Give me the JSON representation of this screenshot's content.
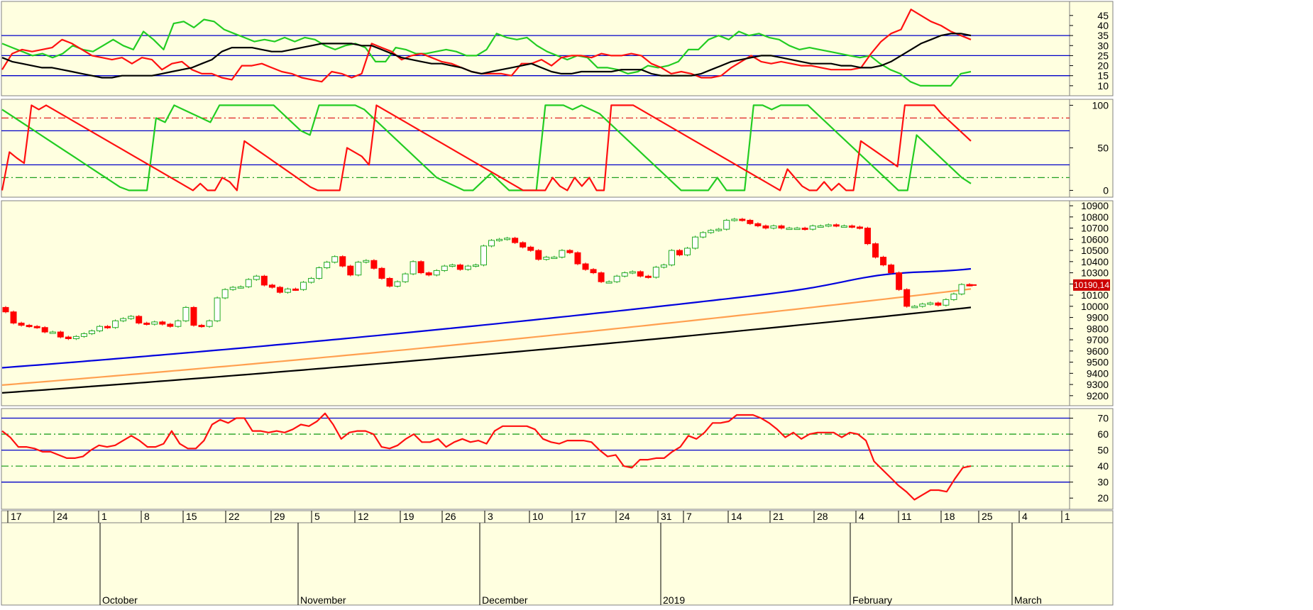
{
  "colors": {
    "panel_bg": "#ffffe0",
    "panel_border": "#808080",
    "guide_solid": "#0000c8",
    "guide_red_dash": "#e02020",
    "guide_green_dash": "#20a020",
    "red": "#ff1010",
    "green": "#22cc22",
    "black": "#000000",
    "blue": "#0000dd",
    "orange": "#ffa050",
    "candle_up_border": "#22aa22",
    "candle_down": "#ff0000",
    "last_price_bg": "#cc0000"
  },
  "x_axis": {
    "day_labels": [
      "17",
      "24",
      "1",
      "8",
      "15",
      "22",
      "29",
      "5",
      "12",
      "19",
      "26",
      "3",
      "10",
      "17",
      "24",
      "31",
      "7",
      "14",
      "21",
      "28",
      "4",
      "11",
      "18",
      "25",
      "4",
      "1"
    ],
    "month_labels": [
      "October",
      "November",
      "December",
      "2019",
      "February",
      "March"
    ]
  },
  "last_price": {
    "label": "10190,14",
    "value": 10190.14
  },
  "chart_data": [
    {
      "type": "line",
      "panel": "dmi",
      "ylim": [
        5,
        52
      ],
      "y_ticks": [
        "10",
        "15",
        "20",
        "25",
        "30",
        "35",
        "40",
        "45"
      ],
      "y_tick_values": [
        10,
        15,
        20,
        25,
        30,
        35,
        40,
        45
      ],
      "guides": [
        {
          "value": 15,
          "style": "solid"
        },
        {
          "value": 25,
          "style": "solid"
        },
        {
          "value": 35,
          "style": "solid"
        }
      ],
      "series": [
        {
          "color": "green",
          "values": [
            31,
            29,
            27,
            25,
            26,
            24,
            26,
            30,
            28,
            27,
            30,
            33,
            30,
            28,
            37,
            33,
            28,
            41,
            42,
            39,
            43,
            42,
            38,
            36,
            34,
            32,
            33,
            32,
            34,
            32,
            34,
            33,
            30,
            28,
            30,
            31,
            29,
            22,
            22,
            29,
            28,
            26,
            26,
            27,
            28,
            27,
            25,
            25,
            28,
            36,
            34,
            33,
            34,
            30,
            27,
            25,
            23,
            25,
            24,
            19,
            19,
            18,
            16,
            17,
            20,
            19,
            20,
            22,
            28,
            28,
            33,
            35,
            33,
            37,
            35,
            36,
            34,
            33,
            30,
            28,
            29,
            28,
            27,
            26,
            25,
            24,
            25,
            21,
            18,
            16,
            12,
            10,
            10,
            10,
            10,
            16,
            17
          ]
        },
        {
          "color": "red",
          "values": [
            18,
            26,
            28,
            27,
            28,
            29,
            33,
            31,
            28,
            25,
            24,
            23,
            24,
            21,
            24,
            23,
            18,
            21,
            22,
            18,
            16,
            16,
            14,
            13,
            20,
            20,
            21,
            19,
            17,
            16,
            14,
            13,
            12,
            17,
            16,
            14,
            16,
            31,
            29,
            27,
            23,
            25,
            26,
            24,
            22,
            21,
            19,
            17,
            16,
            16,
            16,
            15,
            21,
            21,
            23,
            20,
            24,
            25,
            25,
            24,
            26,
            25,
            25,
            26,
            25,
            21,
            19,
            16,
            17,
            16,
            14,
            14,
            15,
            19,
            22,
            25,
            22,
            21,
            22,
            21,
            20,
            20,
            19,
            18,
            18,
            18,
            19,
            26,
            32,
            36,
            38,
            48,
            45,
            42,
            40,
            37,
            35,
            33
          ]
        },
        {
          "color": "black",
          "values": [
            24,
            22,
            21,
            20,
            19,
            19,
            18,
            17,
            16,
            15,
            14,
            14,
            15,
            15,
            15,
            15,
            16,
            17,
            18,
            19,
            21,
            23,
            27,
            29,
            29,
            29,
            28,
            27,
            27,
            28,
            29,
            30,
            31,
            31,
            31,
            31,
            30,
            30,
            28,
            26,
            24,
            23,
            22,
            21,
            21,
            20,
            19,
            17,
            16,
            17,
            18,
            19,
            20,
            21,
            19,
            17,
            16,
            16,
            17,
            17,
            17,
            17,
            18,
            18,
            18,
            16,
            15,
            15,
            15,
            15,
            16,
            18,
            20,
            22,
            23,
            24,
            25,
            25,
            24,
            23,
            22,
            21,
            21,
            21,
            20,
            20,
            19,
            19,
            20,
            22,
            25,
            28,
            31,
            33,
            35,
            36,
            36,
            35
          ]
        }
      ]
    },
    {
      "type": "line",
      "panel": "aroon",
      "ylim": [
        -8,
        107
      ],
      "y_ticks": [
        "0",
        "50",
        "100"
      ],
      "y_tick_values": [
        0,
        50,
        100
      ],
      "guides": [
        {
          "value": 85,
          "style": "dash-red"
        },
        {
          "value": 70,
          "style": "solid"
        },
        {
          "value": 30,
          "style": "solid"
        },
        {
          "value": 15,
          "style": "dash-green"
        }
      ],
      "series": [
        {
          "color": "green",
          "values": [
            95,
            88,
            81,
            74,
            67,
            60,
            53,
            46,
            39,
            32,
            25,
            18,
            11,
            4,
            0,
            0,
            0,
            85,
            80,
            100,
            95,
            90,
            85,
            80,
            100,
            100,
            100,
            100,
            100,
            100,
            100,
            90,
            80,
            70,
            65,
            100,
            100,
            100,
            100,
            100,
            95,
            85,
            75,
            65,
            55,
            45,
            35,
            25,
            15,
            10,
            5,
            0,
            0,
            10,
            20,
            10,
            0,
            0,
            0,
            0,
            100,
            100,
            100,
            95,
            100,
            95,
            90,
            80,
            70,
            60,
            50,
            40,
            30,
            20,
            10,
            0,
            0,
            0,
            0,
            15,
            0,
            0,
            0,
            100,
            100,
            95,
            100,
            100,
            100,
            100,
            90,
            80,
            70,
            60,
            50,
            40,
            30,
            20,
            10,
            0,
            0,
            65,
            55,
            45,
            35,
            25,
            15,
            8
          ]
        },
        {
          "color": "red",
          "values": [
            0,
            45,
            38,
            32,
            100,
            95,
            100,
            95,
            90,
            85,
            80,
            75,
            70,
            65,
            60,
            55,
            50,
            45,
            40,
            35,
            30,
            25,
            20,
            15,
            10,
            5,
            0,
            8,
            0,
            0,
            15,
            10,
            0,
            58,
            52,
            46,
            40,
            34,
            28,
            22,
            16,
            10,
            4,
            0,
            0,
            0,
            0,
            50,
            45,
            40,
            30,
            100,
            95,
            90,
            85,
            80,
            75,
            70,
            65,
            60,
            55,
            50,
            45,
            40,
            35,
            30,
            25,
            20,
            15,
            10,
            5,
            0,
            0,
            0,
            0,
            15,
            5,
            0,
            15,
            5,
            15,
            0,
            0,
            100,
            100,
            100,
            100,
            95,
            90,
            85,
            80,
            75,
            70,
            65,
            60,
            55,
            50,
            45,
            40,
            35,
            30,
            25,
            20,
            15,
            10,
            5,
            0,
            25,
            15,
            5,
            0,
            0,
            10,
            0,
            8,
            0,
            0,
            58,
            52,
            46,
            40,
            34,
            28,
            100,
            100,
            100,
            100,
            100,
            90,
            82,
            74,
            66,
            58
          ]
        }
      ]
    },
    {
      "type": "line",
      "panel": "price",
      "ylim": [
        9110,
        10945
      ],
      "y_ticks": [
        "9200",
        "9300",
        "9400",
        "9500",
        "9600",
        "9700",
        "9800",
        "9900",
        "10000",
        "10100",
        "10200",
        "10300",
        "10400",
        "10500",
        "10600",
        "10700",
        "10800",
        "10900"
      ],
      "y_tick_values": [
        9200,
        9300,
        9400,
        9500,
        9600,
        9700,
        9800,
        9900,
        10000,
        10100,
        10200,
        10300,
        10400,
        10500,
        10600,
        10700,
        10800,
        10900
      ],
      "candles": {
        "open": [
          9990,
          9950,
          9850,
          9830,
          9820,
          9810,
          9770,
          9770,
          9725,
          9710,
          9730,
          9755,
          9780,
          9820,
          9810,
          9870,
          9890,
          9910,
          9850,
          9840,
          9860,
          9840,
          9820,
          9870,
          9990,
          9830,
          9820,
          9870,
          10075,
          10150,
          10170,
          10175,
          10240,
          10270,
          10190,
          10170,
          10125,
          10155,
          10150,
          10215,
          10250,
          10345,
          10395,
          10445,
          10360,
          10280,
          10395,
          10410,
          10340,
          10250,
          10180,
          10220,
          10290,
          10400,
          10300,
          10280,
          10320,
          10360,
          10370,
          10330,
          10360,
          10370,
          10540,
          10590,
          10600,
          10610,
          10570,
          10530,
          10500,
          10420,
          10440,
          10440,
          10500,
          10480,
          10380,
          10330,
          10300,
          10220,
          10220,
          10270,
          10300,
          10310,
          10270,
          10260,
          10350,
          10370,
          10500,
          10460,
          10520,
          10620,
          10660,
          10680,
          10690,
          10770,
          10780,
          10770,
          10740,
          10720,
          10700,
          10720,
          10700,
          10700,
          10700,
          10690,
          10720,
          10720,
          10730,
          10720,
          10720,
          10710,
          10700,
          10560,
          10440,
          10370,
          10300,
          10150,
          10000,
          10000,
          10020,
          10030,
          10010,
          10060,
          10110,
          10195
        ],
        "close": [
          9950,
          9850,
          9830,
          9820,
          9810,
          9770,
          9770,
          9725,
          9710,
          9730,
          9755,
          9780,
          9820,
          9810,
          9870,
          9890,
          9910,
          9850,
          9840,
          9860,
          9840,
          9820,
          9870,
          9990,
          9830,
          9820,
          9870,
          10075,
          10150,
          10170,
          10175,
          10240,
          10270,
          10190,
          10170,
          10125,
          10155,
          10150,
          10215,
          10250,
          10345,
          10395,
          10445,
          10360,
          10280,
          10395,
          10410,
          10340,
          10250,
          10180,
          10220,
          10290,
          10400,
          10300,
          10280,
          10320,
          10360,
          10370,
          10330,
          10360,
          10370,
          10540,
          10590,
          10600,
          10610,
          10570,
          10530,
          10500,
          10420,
          10440,
          10440,
          10500,
          10480,
          10380,
          10330,
          10300,
          10220,
          10220,
          10270,
          10300,
          10310,
          10270,
          10260,
          10350,
          10370,
          10500,
          10460,
          10520,
          10620,
          10660,
          10680,
          10690,
          10770,
          10780,
          10770,
          10740,
          10720,
          10700,
          10720,
          10700,
          10700,
          10700,
          10690,
          10720,
          10720,
          10730,
          10720,
          10720,
          10710,
          10700,
          10560,
          10440,
          10370,
          10300,
          10150,
          10000,
          10000,
          10020,
          10030,
          10010,
          10060,
          10110,
          10195,
          10190
        ]
      },
      "series": [
        {
          "color": "blue",
          "name": "",
          "start": 9450,
          "end": 10330,
          "peak": 10380
        },
        {
          "color": "orange",
          "name": "",
          "start": 9295,
          "end": 10155
        },
        {
          "color": "black",
          "name": "",
          "start": 9225,
          "end": 9990
        }
      ]
    },
    {
      "type": "line",
      "panel": "rsi",
      "ylim": [
        13,
        76
      ],
      "y_ticks": [
        "20",
        "30",
        "40",
        "50",
        "60",
        "70"
      ],
      "y_tick_values": [
        20,
        30,
        40,
        50,
        60,
        70
      ],
      "guides": [
        {
          "value": 70,
          "style": "solid"
        },
        {
          "value": 60,
          "style": "dash-green"
        },
        {
          "value": 50,
          "style": "solid"
        },
        {
          "value": 40,
          "style": "dash-green"
        },
        {
          "value": 30,
          "style": "solid"
        }
      ],
      "series": [
        {
          "color": "red",
          "values": [
            62,
            58,
            52,
            52,
            51,
            49,
            49,
            47,
            45,
            45,
            46,
            50,
            53,
            52,
            53,
            56,
            59,
            56,
            52,
            52,
            54,
            62,
            54,
            51,
            51,
            56,
            66,
            69,
            67,
            70,
            70,
            62,
            62,
            61,
            62,
            61,
            63,
            66,
            65,
            68,
            73,
            66,
            57,
            61,
            62,
            62,
            60,
            52,
            51,
            53,
            57,
            60,
            55,
            55,
            57,
            52,
            55,
            57,
            55,
            56,
            54,
            62,
            65,
            65,
            65,
            65,
            63,
            57,
            55,
            54,
            56,
            56,
            56,
            55,
            50,
            46,
            47,
            40,
            39,
            44,
            44,
            45,
            45,
            49,
            52,
            59,
            57,
            61,
            67,
            67,
            68,
            72,
            72,
            72,
            70,
            67,
            63,
            58,
            61,
            57,
            60,
            61,
            61,
            61,
            58,
            61,
            60,
            56,
            43,
            38,
            33,
            28,
            24,
            19,
            22,
            25,
            25,
            24,
            32,
            39,
            40
          ]
        }
      ]
    }
  ]
}
